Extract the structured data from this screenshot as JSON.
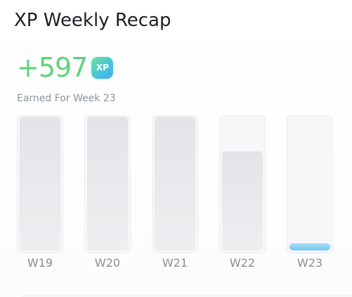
{
  "header": {
    "title": "XP Weekly Recap"
  },
  "summary": {
    "xp_value": "+597",
    "badge_label": "XP",
    "subtitle": "Earned For Week 23"
  },
  "colors": {
    "xp_green": "#5fd37a",
    "current_bar": "#72c4f0",
    "past_bar": "#e4e4e8"
  },
  "weeks": [
    {
      "label": "W19",
      "fill_fraction": 1.0,
      "current": false
    },
    {
      "label": "W20",
      "fill_fraction": 1.0,
      "current": false
    },
    {
      "label": "W21",
      "fill_fraction": 1.0,
      "current": false
    },
    {
      "label": "W22",
      "fill_fraction": 0.74,
      "current": false
    },
    {
      "label": "W23",
      "fill_fraction": 0.05,
      "current": true
    }
  ]
}
